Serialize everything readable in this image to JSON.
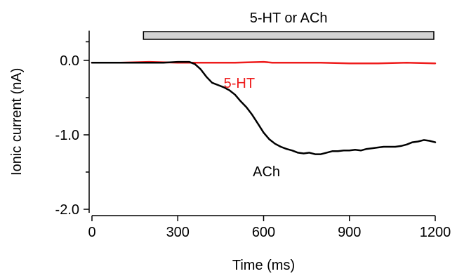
{
  "chart_data": {
    "type": "line",
    "xlabel": "Time (ms)",
    "ylabel": "Ionic current (nA)",
    "xlim": [
      0,
      1200
    ],
    "ylim": [
      -2.0,
      0.4
    ],
    "x_ticks": [
      0,
      300,
      600,
      900,
      1200
    ],
    "x_tick_labels": [
      "0",
      "300",
      "600",
      "900",
      "1200"
    ],
    "y_ticks": [
      0.0,
      -1.0,
      -2.0
    ],
    "y_tick_labels": [
      "0.0",
      "-1.0",
      "-2.0"
    ],
    "y_minor_ticks": [
      0.25,
      -0.5,
      -1.5
    ],
    "grid": false,
    "application_bar": {
      "label": "5-HT or ACh",
      "x_start": 180,
      "x_end": 1195,
      "color": "#d3d3d3"
    },
    "series": [
      {
        "name": "5-HT",
        "color": "#ee1c1c",
        "x": [
          0,
          100,
          200,
          300,
          400,
          500,
          600,
          630,
          640,
          700,
          800,
          900,
          1000,
          1100,
          1200
        ],
        "values": [
          -0.03,
          -0.03,
          -0.02,
          -0.03,
          -0.03,
          -0.03,
          -0.02,
          -0.03,
          -0.03,
          -0.03,
          -0.03,
          -0.04,
          -0.04,
          -0.03,
          -0.04
        ]
      },
      {
        "name": "ACh",
        "color": "#000000",
        "x": [
          0,
          50,
          100,
          150,
          200,
          250,
          300,
          340,
          360,
          380,
          400,
          420,
          440,
          460,
          480,
          500,
          520,
          540,
          560,
          580,
          600,
          620,
          640,
          660,
          680,
          700,
          720,
          740,
          760,
          780,
          800,
          820,
          840,
          860,
          880,
          900,
          920,
          940,
          960,
          980,
          1000,
          1020,
          1040,
          1060,
          1080,
          1100,
          1120,
          1140,
          1160,
          1180,
          1200
        ],
        "values": [
          -0.03,
          -0.03,
          -0.03,
          -0.03,
          -0.03,
          -0.03,
          -0.02,
          -0.02,
          -0.05,
          -0.12,
          -0.22,
          -0.3,
          -0.33,
          -0.36,
          -0.4,
          -0.46,
          -0.55,
          -0.63,
          -0.73,
          -0.85,
          -0.97,
          -1.06,
          -1.12,
          -1.16,
          -1.19,
          -1.21,
          -1.24,
          -1.25,
          -1.24,
          -1.26,
          -1.26,
          -1.24,
          -1.22,
          -1.22,
          -1.21,
          -1.21,
          -1.2,
          -1.21,
          -1.19,
          -1.18,
          -1.17,
          -1.16,
          -1.16,
          -1.16,
          -1.15,
          -1.13,
          -1.1,
          -1.09,
          -1.07,
          -1.08,
          -1.1
        ]
      }
    ],
    "annotations": [
      {
        "text": "5-HT",
        "color": "#ee1c1c",
        "x": 515,
        "y": -0.3
      },
      {
        "text": "ACh",
        "color": "#000000",
        "x": 610,
        "y": -1.49
      }
    ]
  }
}
